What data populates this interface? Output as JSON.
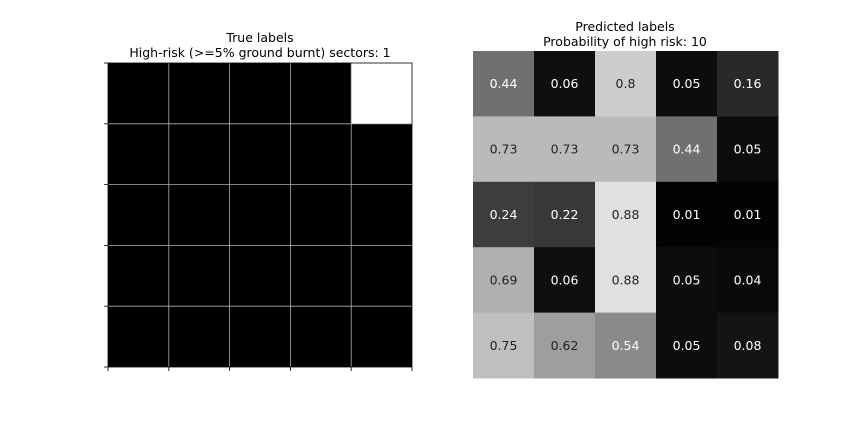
{
  "chart_data": [
    {
      "type": "heatmap",
      "title": "True labels",
      "subtitle": "High-risk (>=5% ground burnt) sectors: 1",
      "rows": 5,
      "cols": 5,
      "values": [
        [
          0,
          0,
          0,
          0,
          1
        ],
        [
          0,
          0,
          0,
          0,
          0
        ],
        [
          0,
          0,
          0,
          0,
          0
        ],
        [
          0,
          0,
          0,
          0,
          0
        ],
        [
          0,
          0,
          0,
          0,
          0
        ]
      ],
      "colormap": "gray",
      "vmin": 0,
      "vmax": 1,
      "grid": true,
      "tick_labels": false
    },
    {
      "type": "heatmap",
      "title": "Predicted labels",
      "subtitle": "Probability of high risk: 10",
      "rows": 5,
      "cols": 5,
      "values": [
        [
          0.44,
          0.06,
          0.8,
          0.05,
          0.16
        ],
        [
          0.73,
          0.73,
          0.73,
          0.44,
          0.05
        ],
        [
          0.24,
          0.22,
          0.88,
          0.01,
          0.01
        ],
        [
          0.69,
          0.06,
          0.88,
          0.05,
          0.04
        ],
        [
          0.75,
          0.62,
          0.54,
          0.05,
          0.08
        ]
      ],
      "colormap": "gray",
      "vmin": 0,
      "vmax": 1,
      "grid": false,
      "tick_labels": false,
      "annotated": true
    }
  ]
}
